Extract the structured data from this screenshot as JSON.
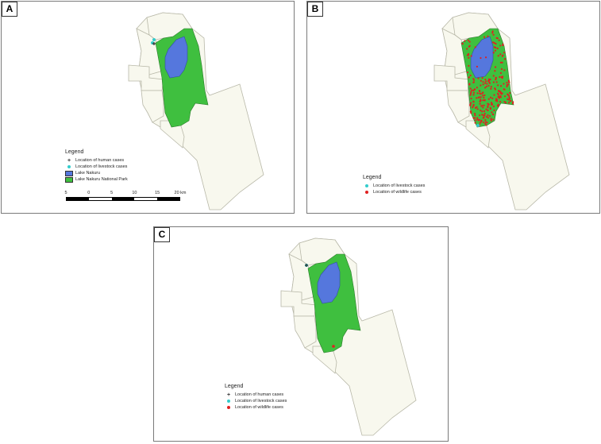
{
  "colors": {
    "district_fill": "#f8f8ee",
    "district_stroke": "#b8b8a8",
    "park": "#3fbf3f",
    "park_stroke": "#2a7a2a",
    "lake": "#5577dd",
    "lake_stroke": "#3050a0",
    "human": "#333333",
    "livestock": "#33cccc",
    "wildlife": "#e02020"
  },
  "panels": [
    {
      "letter": "A",
      "legend_title": "Legend",
      "legend_items": [
        {
          "symbol": "plus",
          "color": "#333333",
          "label": "Location of human cases"
        },
        {
          "symbol": "dot",
          "color": "#33cccc",
          "label": "Location of livestock cases"
        },
        {
          "symbol": "rect",
          "color": "#5577dd",
          "label": "Lake Nakuru"
        },
        {
          "symbol": "rect",
          "color": "#3fbf3f",
          "label": "Lake Nakuru National Park"
        }
      ],
      "scalebar_labels": [
        "5",
        "0",
        "5",
        "10",
        "15",
        "20 km"
      ]
    },
    {
      "letter": "B",
      "legend_title": "Legend",
      "legend_items": [
        {
          "symbol": "dot",
          "color": "#33cccc",
          "label": "Location of livestock cases"
        },
        {
          "symbol": "dot",
          "color": "#e02020",
          "label": "Location of wildlife cases"
        }
      ]
    },
    {
      "letter": "C",
      "legend_title": "Legend",
      "legend_items": [
        {
          "symbol": "plus",
          "color": "#333333",
          "label": "Location of human cases"
        },
        {
          "symbol": "dot",
          "color": "#33cccc",
          "label": "Location of livestock cases"
        },
        {
          "symbol": "dot",
          "color": "#e02020",
          "label": "Location of wildlife cases"
        }
      ]
    }
  ]
}
